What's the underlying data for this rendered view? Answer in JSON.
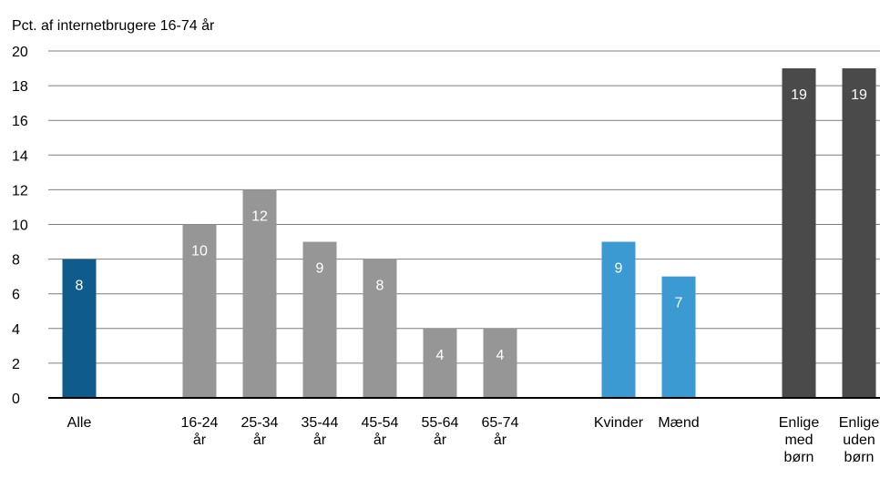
{
  "chart_data": {
    "type": "bar",
    "title": "",
    "ylabel": "Pct. af internetbrugere 16-74 år",
    "xlabel": "",
    "ylim": [
      0,
      20
    ],
    "yticks": [
      0,
      2,
      4,
      6,
      8,
      10,
      12,
      14,
      16,
      18,
      20
    ],
    "grid": true,
    "categories": [
      {
        "label": [
          "Alle"
        ],
        "value": 8,
        "color": "#0f5c8c"
      },
      {
        "label": [
          "16-24",
          "år"
        ],
        "value": 10,
        "color": "#969696"
      },
      {
        "label": [
          "25-34",
          "år"
        ],
        "value": 12,
        "color": "#969696"
      },
      {
        "label": [
          "35-44",
          "år"
        ],
        "value": 9,
        "color": "#969696"
      },
      {
        "label": [
          "45-54",
          "år"
        ],
        "value": 8,
        "color": "#969696"
      },
      {
        "label": [
          "55-64",
          "år"
        ],
        "value": 4,
        "color": "#969696"
      },
      {
        "label": [
          "65-74",
          "år"
        ],
        "value": 4,
        "color": "#969696"
      },
      {
        "label": [
          "Kvinder"
        ],
        "value": 9,
        "color": "#3a9ad1"
      },
      {
        "label": [
          "Mænd"
        ],
        "value": 7,
        "color": "#3a9ad1"
      },
      {
        "label": [
          "Enlige",
          "med",
          "børn"
        ],
        "value": 19,
        "color": "#4a4a4a"
      },
      {
        "label": [
          "Enlige",
          "uden",
          "børn"
        ],
        "value": 19,
        "color": "#4a4a4a"
      }
    ],
    "value_label_color": "#ffffff",
    "gridline_color": "#7f7f7f",
    "axis_color": "#000000"
  }
}
